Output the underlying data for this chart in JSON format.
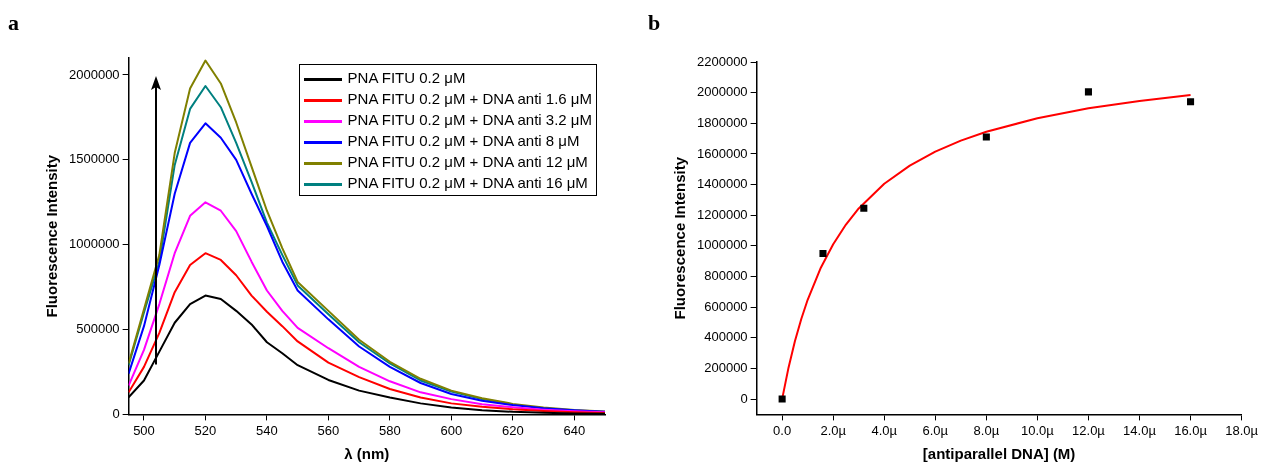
{
  "chart_data": [
    {
      "type": "line",
      "title": "a",
      "xlabel": "λ (nm)",
      "ylabel": "Fluorescence Intensity",
      "x": [
        495,
        500,
        505,
        510,
        515,
        520,
        525,
        530,
        535,
        540,
        545,
        550,
        560,
        570,
        580,
        590,
        600,
        610,
        620,
        630,
        640,
        650
      ],
      "xlim": [
        495,
        650
      ],
      "xticks": [
        500,
        520,
        540,
        560,
        580,
        600,
        620,
        640
      ],
      "ylim": [
        0,
        2100000
      ],
      "yticks": [
        0,
        500000,
        1000000,
        1500000,
        2000000
      ],
      "legend": "top right",
      "marker": "none",
      "line_style": "solid",
      "grid": false,
      "series": [
        {
          "name": "PNA FITU 0.2 μM",
          "color": "#000000",
          "values": [
            100000,
            200000,
            370000,
            540000,
            650000,
            700000,
            680000,
            610000,
            530000,
            425000,
            360000,
            290000,
            203000,
            140000,
            100000,
            65000,
            40000,
            25000,
            15000,
            10000,
            6000,
            4000
          ]
        },
        {
          "name": "PNA FITU 0.2 μM + DNA anti 1.6 μM",
          "color": "#ff0000",
          "values": [
            130000,
            280000,
            480000,
            720000,
            880000,
            950000,
            910000,
            820000,
            700000,
            605000,
            520000,
            430000,
            305000,
            220000,
            150000,
            100000,
            65000,
            45000,
            30000,
            20000,
            12000,
            8000
          ]
        },
        {
          "name": "PNA FITU 0.2 μM + DNA anti 3.2 μM",
          "color": "#ff00ff",
          "values": [
            170000,
            380000,
            650000,
            950000,
            1170000,
            1250000,
            1200000,
            1080000,
            900000,
            730000,
            610000,
            510000,
            390000,
            280000,
            195000,
            130000,
            90000,
            60000,
            42000,
            28000,
            18000,
            12000
          ]
        },
        {
          "name": "PNA FITU 0.2 μM + DNA anti 8 μM",
          "color": "#0000ff",
          "values": [
            240000,
            520000,
            880000,
            1300000,
            1600000,
            1715000,
            1630000,
            1500000,
            1300000,
            1110000,
            900000,
            730000,
            560000,
            400000,
            280000,
            185000,
            120000,
            80000,
            55000,
            36000,
            24000,
            15000
          ]
        },
        {
          "name": "PNA FITU 0.2 μM + DNA anti 12 μM",
          "color": "#808000",
          "values": [
            300000,
            620000,
            940000,
            1540000,
            1920000,
            2085000,
            1950000,
            1720000,
            1460000,
            1200000,
            980000,
            780000,
            610000,
            440000,
            310000,
            210000,
            140000,
            95000,
            62000,
            40000,
            26000,
            17000
          ]
        },
        {
          "name": "PNA FITU 0.2 μM + DNA anti 16 μM",
          "color": "#008080",
          "values": [
            290000,
            600000,
            900000,
            1470000,
            1800000,
            1935000,
            1810000,
            1600000,
            1370000,
            1130000,
            940000,
            760000,
            590000,
            425000,
            300000,
            200000,
            135000,
            90000,
            60000,
            null,
            null,
            null
          ]
        }
      ]
    },
    {
      "type": "scatter",
      "title": "b",
      "xlabel": "[antiparallel DNA] (M)",
      "ylabel": "Fluorescence Intensity",
      "xlim": [
        -1,
        18
      ],
      "xticks": [
        {
          "value": 0,
          "label": "0.0"
        },
        {
          "value": 2,
          "label": "2.0µ"
        },
        {
          "value": 4,
          "label": "4.0µ"
        },
        {
          "value": 6,
          "label": "6.0µ"
        },
        {
          "value": 8,
          "label": "8.0µ"
        },
        {
          "value": 10,
          "label": "10.0µ"
        },
        {
          "value": 12,
          "label": "12.0µ"
        },
        {
          "value": 14,
          "label": "14.0µ"
        },
        {
          "value": 16,
          "label": "16.0µ"
        },
        {
          "value": 18,
          "label": "18.0µ"
        }
      ],
      "ylim": [
        -100000,
        2200000
      ],
      "yticks": [
        0,
        200000,
        400000,
        600000,
        800000,
        1000000,
        1200000,
        1400000,
        1600000,
        1800000,
        2000000,
        2200000
      ],
      "grid": false,
      "series": [
        {
          "color": "#000000",
          "marker": "square",
          "x": [
            0,
            1.6,
            3.2,
            8,
            12,
            16
          ],
          "values": [
            0,
            950000,
            1245000,
            1710000,
            2005000,
            1940000
          ]
        },
        {
          "type": "line",
          "color": "#ff0000",
          "x": [
            0,
            0.25,
            0.5,
            0.75,
            1,
            1.5,
            2,
            2.5,
            3,
            4,
            5,
            6,
            7,
            8,
            10,
            12,
            14,
            16
          ],
          "values": [
            0,
            205000,
            377000,
            523000,
            648000,
            852000,
            1011000,
            1139000,
            1244000,
            1405000,
            1524000,
            1615000,
            1687000,
            1745000,
            1833000,
            1898000,
            1946000,
            1985000
          ]
        }
      ]
    }
  ]
}
